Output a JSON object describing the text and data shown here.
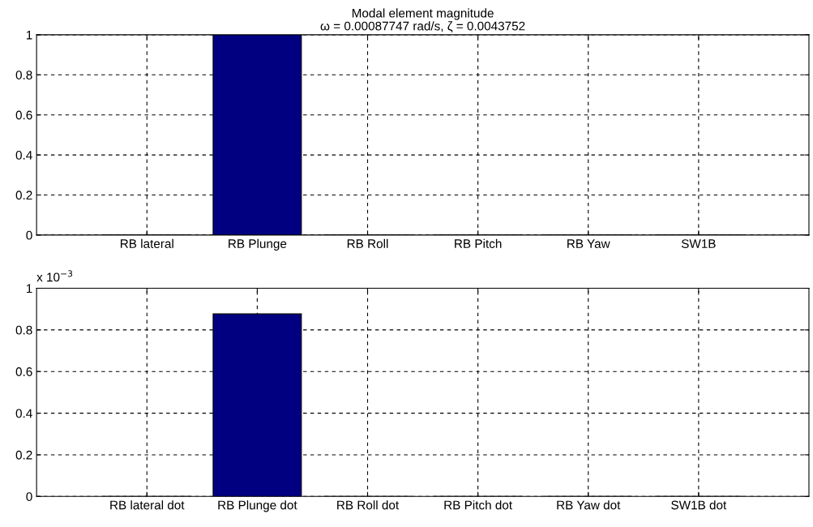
{
  "chart_data": [
    {
      "type": "bar",
      "title": "Modal element magnitude",
      "subtitle": "ω = 0.00087747 rad/s, ζ = 0.0043752",
      "categories": [
        "RB lateral",
        "RB Plunge",
        "RB Roll",
        "RB Pitch",
        "RB Yaw",
        "SW1B"
      ],
      "values": [
        0,
        1,
        0,
        0,
        0,
        0
      ],
      "color": "#000080",
      "ylim": [
        0,
        1
      ],
      "yticks": [
        0,
        0.2,
        0.4,
        0.6,
        0.8,
        1
      ],
      "grid": true
    },
    {
      "type": "bar",
      "annotations": [
        "x 10$^{−3}$"
      ],
      "categories": [
        "RB lateral dot",
        "RB Plunge dot",
        "RB Roll dot",
        "RB Pitch dot",
        "RB Yaw dot",
        "SW1B dot"
      ],
      "values": [
        0,
        0.877,
        0,
        0,
        0,
        0
      ],
      "color": "#000080",
      "ylim": [
        0,
        1
      ],
      "yticks": [
        0,
        0.2,
        0.4,
        0.6,
        0.8,
        1
      ],
      "grid": true
    }
  ]
}
